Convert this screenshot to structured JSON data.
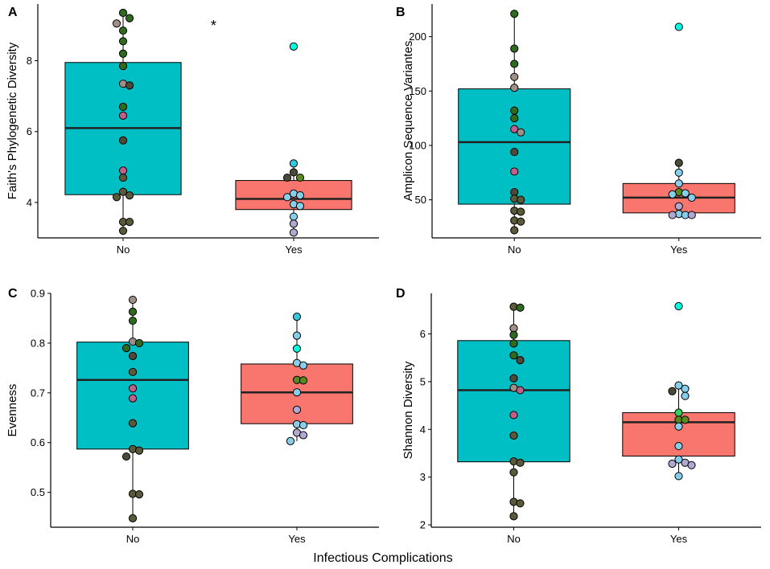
{
  "x_axis_title": "Infectious Complications",
  "colors": {
    "no_box": "#00BFC4",
    "yes_box": "#F8766D",
    "line": "#000000"
  },
  "chart_data": [
    {
      "panel": "A",
      "type": "boxplot",
      "ylabel": "Faith's Phylogenetic Diversity",
      "ylim": [
        3.0,
        9.6
      ],
      "yticks": [
        4,
        6,
        8
      ],
      "categories": [
        "No",
        "Yes"
      ],
      "annotation": "*",
      "boxes": [
        {
          "category": "No",
          "q1": 4.22,
          "median": 6.1,
          "q3": 7.95,
          "whisker_low": 3.2,
          "whisker_high": 9.35
        },
        {
          "category": "Yes",
          "q1": 3.8,
          "median": 4.1,
          "q3": 4.62,
          "whisker_low": 3.15,
          "whisker_high": 5.1
        }
      ],
      "points": [
        {
          "category": "No",
          "values": [
            9.35,
            9.2,
            9.05,
            8.85,
            8.55,
            8.2,
            7.85,
            7.35,
            7.3,
            6.7,
            6.45,
            5.75,
            4.9,
            4.7,
            4.3,
            4.2,
            4.15,
            3.45,
            3.45,
            3.2
          ],
          "colors": [
            "#2E6B1E",
            "#2E6B1E",
            "#9E9088",
            "#2E6B1E",
            "#2E6B1E",
            "#2E6B1E",
            "#2E6B1E",
            "#9E9088",
            "#4A4A3A",
            "#2E6B1E",
            "#C0608A",
            "#4A4A3A",
            "#C0608A",
            "#5A5A3A",
            "#5A5A3A",
            "#5A5A3A",
            "#5A5A3A",
            "#5A5A3A",
            "#5A5A3A",
            "#5A5A3A"
          ]
        },
        {
          "category": "Yes",
          "values": [
            8.4,
            5.1,
            4.85,
            4.7,
            4.7,
            4.25,
            4.2,
            4.15,
            3.95,
            3.9,
            3.6,
            3.4,
            3.15
          ],
          "colors": [
            "#00FFE0",
            "#33C8E0",
            "#4A4A3A",
            "#5A8A1E",
            "#4A4A3A",
            "#87CEEB",
            "#87CEEB",
            "#87CEEB",
            "#87CEEB",
            "#87CEEB",
            "#87CEEB",
            "#B0A8D0",
            "#B0A8D0"
          ]
        }
      ]
    },
    {
      "panel": "B",
      "type": "boxplot",
      "ylabel": "Amplicon Sequence Variantes",
      "ylim": [
        15,
        230
      ],
      "yticks": [
        50,
        100,
        150,
        200
      ],
      "categories": [
        "No",
        "Yes"
      ],
      "boxes": [
        {
          "category": "No",
          "q1": 46,
          "median": 103,
          "q3": 152,
          "whisker_low": 22,
          "whisker_high": 221
        },
        {
          "category": "Yes",
          "q1": 38,
          "median": 52,
          "q3": 65,
          "whisker_low": 35,
          "whisker_high": 84
        }
      ],
      "points": [
        {
          "category": "No",
          "values": [
            221,
            189,
            175,
            163,
            153,
            132,
            125,
            115,
            112,
            94,
            76,
            57,
            51,
            50,
            40,
            39,
            31,
            30,
            22
          ],
          "colors": [
            "#2E6B1E",
            "#2E6B1E",
            "#2E6B1E",
            "#9E9088",
            "#9E9088",
            "#2E6B1E",
            "#2E6B1E",
            "#C0608A",
            "#9E9088",
            "#4A4A3A",
            "#C0608A",
            "#4A4A3A",
            "#5A5A3A",
            "#5A5A3A",
            "#5A5A3A",
            "#5A5A3A",
            "#5A5A3A",
            "#5A5A3A",
            "#5A5A3A"
          ]
        },
        {
          "category": "Yes",
          "values": [
            209,
            84,
            75,
            65,
            57,
            56,
            55,
            52,
            44,
            37,
            36,
            36,
            36
          ],
          "colors": [
            "#00FFE0",
            "#4A4A3A",
            "#87CEEB",
            "#87CEEB",
            "#5A8A1E",
            "#87CEEB",
            "#87CEEB",
            "#87CEEB",
            "#B0A8D0",
            "#87CEEB",
            "#87CEEB",
            "#B0A8D0",
            "#B0A8D0"
          ]
        }
      ]
    },
    {
      "panel": "C",
      "type": "boxplot",
      "ylabel": "Evenness",
      "ylim": [
        0.43,
        0.9
      ],
      "yticks": [
        0.5,
        0.6,
        0.7,
        0.8,
        0.9
      ],
      "categories": [
        "No",
        "Yes"
      ],
      "boxes": [
        {
          "category": "No",
          "q1": 0.587,
          "median": 0.726,
          "q3": 0.802,
          "whisker_low": 0.448,
          "whisker_high": 0.887
        },
        {
          "category": "Yes",
          "q1": 0.638,
          "median": 0.701,
          "q3": 0.758,
          "whisker_low": 0.603,
          "whisker_high": 0.853
        }
      ],
      "points": [
        {
          "category": "No",
          "values": [
            0.887,
            0.863,
            0.845,
            0.803,
            0.8,
            0.79,
            0.774,
            0.742,
            0.709,
            0.689,
            0.639,
            0.587,
            0.584,
            0.572,
            0.497,
            0.496,
            0.448
          ],
          "colors": [
            "#9E9088",
            "#2E6B1E",
            "#2E6B1E",
            "#9E9088",
            "#2E6B1E",
            "#2E6B1E",
            "#4A4A3A",
            "#5A5A3A",
            "#C0608A",
            "#C0608A",
            "#5A5A3A",
            "#5A5A3A",
            "#5A5A3A",
            "#4A4A3A",
            "#5A5A3A",
            "#5A5A3A",
            "#5A5A3A"
          ]
        },
        {
          "category": "Yes",
          "values": [
            0.853,
            0.815,
            0.789,
            0.76,
            0.755,
            0.726,
            0.725,
            0.701,
            0.666,
            0.637,
            0.635,
            0.62,
            0.615,
            0.603
          ],
          "colors": [
            "#33C8E0",
            "#87CEEB",
            "#00FFE0",
            "#87CEEB",
            "#87CEEB",
            "#5A8A1E",
            "#5A8A1E",
            "#87CEEB",
            "#B0A8D0",
            "#87CEEB",
            "#87CEEB",
            "#B0A8D0",
            "#B0A8D0",
            "#87CEEB"
          ]
        }
      ]
    },
    {
      "panel": "D",
      "type": "boxplot",
      "ylabel": "Shannon Diversity",
      "ylim": [
        1.95,
        6.85
      ],
      "yticks": [
        2,
        3,
        4,
        5,
        6
      ],
      "categories": [
        "No",
        "Yes"
      ],
      "boxes": [
        {
          "category": "No",
          "q1": 3.32,
          "median": 4.82,
          "q3": 5.86,
          "whisker_low": 2.18,
          "whisker_high": 6.57
        },
        {
          "category": "Yes",
          "q1": 3.44,
          "median": 4.15,
          "q3": 4.35,
          "whisker_low": 3.0,
          "whisker_high": 4.92
        }
      ],
      "points": [
        {
          "category": "No",
          "values": [
            6.57,
            6.55,
            6.12,
            5.98,
            5.8,
            5.55,
            5.45,
            5.07,
            4.87,
            4.82,
            4.3,
            3.87,
            3.33,
            3.3,
            3.1,
            2.48,
            2.45,
            2.18
          ],
          "colors": [
            "#5A5A3A",
            "#2E6B1E",
            "#9E9088",
            "#2E6B1E",
            "#2E6B1E",
            "#2E6B1E",
            "#4A4A3A",
            "#4A4A3A",
            "#9E9088",
            "#C0608A",
            "#C0608A",
            "#5A5A3A",
            "#5A5A3A",
            "#5A5A3A",
            "#5A5A3A",
            "#5A5A3A",
            "#5A5A3A",
            "#5A5A3A"
          ]
        },
        {
          "category": "Yes",
          "values": [
            6.58,
            4.92,
            4.85,
            4.8,
            4.7,
            4.35,
            4.2,
            4.2,
            4.06,
            3.65,
            3.37,
            3.3,
            3.28,
            3.25,
            3.02
          ],
          "colors": [
            "#00FFE0",
            "#87CEEB",
            "#87CEEB",
            "#4A4A3A",
            "#87CEEB",
            "#33D060",
            "#5A8A1E",
            "#5A8A1E",
            "#87CEEB",
            "#87CEEB",
            "#87CEEB",
            "#B0A8D0",
            "#B0A8D0",
            "#B0A8D0",
            "#87CEEB"
          ]
        }
      ]
    }
  ]
}
